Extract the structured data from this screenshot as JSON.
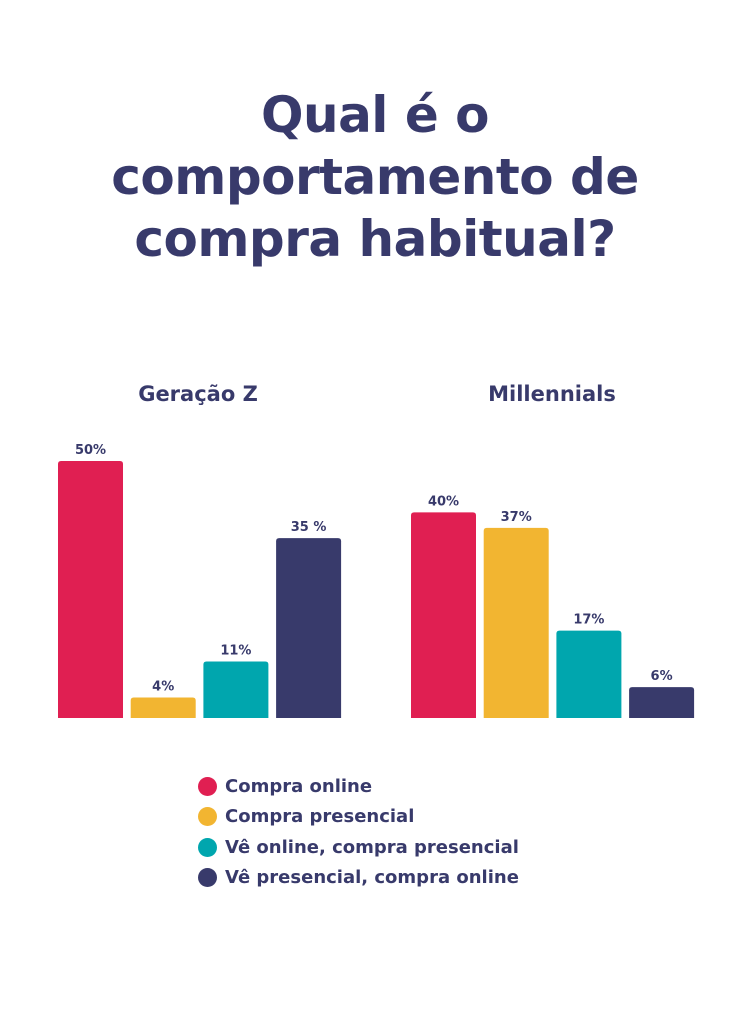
{
  "chart_data": [
    {
      "type": "bar",
      "title": "Geração Z",
      "categories": [
        "Compra online",
        "Compra presencial",
        "Vê online, compra presencial",
        "Vê presencial, compra online"
      ],
      "values": [
        50,
        4,
        11,
        35
      ],
      "labels": [
        "50%",
        "4%",
        "11%",
        "35 %"
      ],
      "ylim": [
        0,
        50
      ],
      "grid": false
    },
    {
      "type": "bar",
      "title": "Millennials",
      "categories": [
        "Compra online",
        "Compra presencial",
        "Vê online, compra presencial",
        "Vê presencial, compra online"
      ],
      "values": [
        40,
        37,
        17,
        6
      ],
      "labels": [
        "40%",
        "37%",
        "17%",
        "6%"
      ],
      "ylim": [
        0,
        50
      ],
      "grid": false
    }
  ],
  "title_lines": [
    "Qual é o",
    "comportamento de",
    "compra habitual?"
  ],
  "legend": {
    "placement": "bottom",
    "items": [
      {
        "label": "Compra online",
        "color": "#e01f52"
      },
      {
        "label": "Compra presencial",
        "color": "#f2b531"
      },
      {
        "label": "Vê online, compra presencial",
        "color": "#00a6ae"
      },
      {
        "label": "Vê presencial, compra online",
        "color": "#383a6b"
      }
    ]
  }
}
